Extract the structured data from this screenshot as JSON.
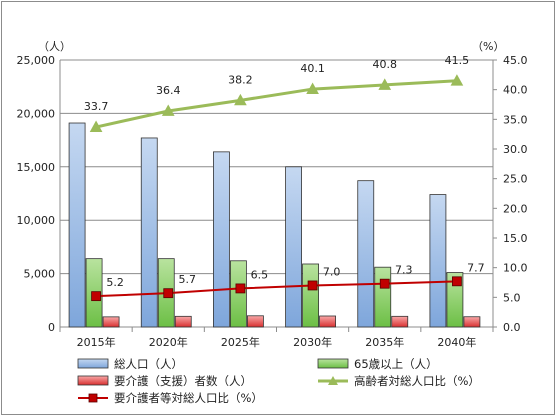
{
  "chart_data": {
    "type": "bar",
    "categories": [
      "2015年",
      "2020年",
      "2025年",
      "2030年",
      "2035年",
      "2040年"
    ],
    "y_left": {
      "unit_label": "（人）",
      "ylim": [
        0,
        25000
      ],
      "ticks": [
        "0",
        "5,000",
        "10,000",
        "15,000",
        "20,000",
        "25,000"
      ]
    },
    "y_right": {
      "unit_label": "（%）",
      "ylim": [
        0,
        45
      ],
      "ticks": [
        "0.0",
        "5.0",
        "10.0",
        "15.0",
        "20.0",
        "25.0",
        "30.0",
        "35.0",
        "40.0",
        "45.0"
      ]
    },
    "bar_series": [
      {
        "name": "総人口（人）",
        "values": [
          19100,
          17700,
          16400,
          15000,
          13700,
          12400
        ],
        "color": "#9dbbe6"
      },
      {
        "name": "65歳以上（人）",
        "values": [
          6400,
          6400,
          6200,
          5900,
          5600,
          5100
        ],
        "color": "#8fd16e"
      },
      {
        "name": "要介護（支援）者数（人）",
        "values": [
          950,
          1000,
          1050,
          1030,
          1000,
          960
        ],
        "color": "#f26060"
      }
    ],
    "line_series": [
      {
        "name": "高齢者対総人口比（%）",
        "values": [
          33.7,
          36.4,
          38.2,
          40.1,
          40.8,
          41.5
        ],
        "labels": [
          "33.7",
          "36.4",
          "38.2",
          "40.1",
          "40.8",
          "41.5"
        ],
        "color": "#9bbb59",
        "marker": "triangle"
      },
      {
        "name": "要介護者等対総人口比（%）",
        "values": [
          5.2,
          5.7,
          6.5,
          7.0,
          7.3,
          7.7
        ],
        "labels": [
          "5.2",
          "5.7",
          "6.5",
          "7.0",
          "7.3",
          "7.7"
        ],
        "color": "#c00000",
        "marker": "square"
      }
    ],
    "grid": true,
    "legend_position": "bottom"
  }
}
